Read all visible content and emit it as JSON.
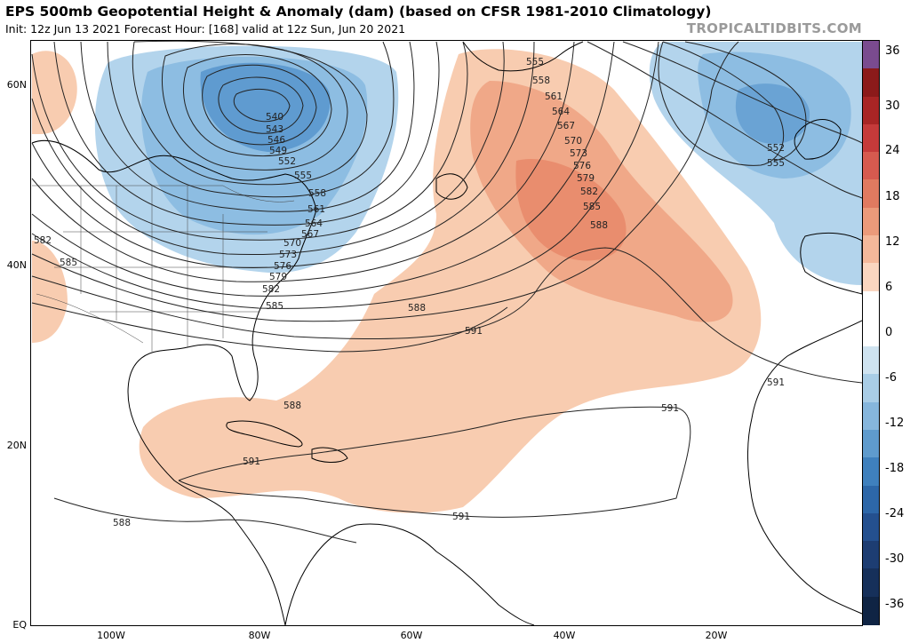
{
  "header": {
    "title": "EPS 500mb Geopotential Height & Anomaly (dam) (based on CFSR 1981-2010 Climatology)",
    "subtitle": "Init: 12z Jun 13 2021   Forecast Hour: [168]   valid at 12z Sun, Jun 20 2021",
    "credit": "TROPICALTIDBITS.COM"
  },
  "axes": {
    "lat_labels": [
      "60N",
      "40N",
      "20N",
      "EQ"
    ],
    "lon_labels": [
      "100W",
      "80W",
      "60W",
      "40W",
      "20W"
    ]
  },
  "colorbar": {
    "labels": [
      "36",
      "30",
      "24",
      "18",
      "12",
      "6",
      "0",
      "-6",
      "-12",
      "-18",
      "-24",
      "-30",
      "-36"
    ],
    "segments": [
      "#7a4b8f",
      "#8b1a1a",
      "#a82525",
      "#c53a3a",
      "#d65a4f",
      "#e07a60",
      "#eb9a7a",
      "#f4b89a",
      "#fad6c0",
      "#ffffff",
      "#ffffff",
      "#cfe3f0",
      "#a9cde6",
      "#86b6dc",
      "#5f9bcd",
      "#3f80bd",
      "#2d67a8",
      "#24508f",
      "#1d3d72",
      "#16305a",
      "#0f2444"
    ]
  },
  "contours": {
    "labels": [
      "540",
      "543",
      "546",
      "549",
      "552",
      "555",
      "558",
      "561",
      "564",
      "567",
      "570",
      "573",
      "576",
      "579",
      "582",
      "585",
      "588",
      "591",
      "555",
      "558",
      "561",
      "564",
      "567",
      "570",
      "573",
      "576",
      "579",
      "582",
      "585",
      "588",
      "552",
      "555",
      "582",
      "585",
      "588",
      "591",
      "591",
      "591",
      "591",
      "591",
      "588"
    ]
  },
  "colors": {
    "positive_anomaly": "#f6c2a4",
    "strong_positive": "#ec9a7c",
    "negative_anomaly": "#9cc6e4",
    "strong_negative": "#4f8fc8",
    "contour": "#222222",
    "coast": "#000000"
  }
}
